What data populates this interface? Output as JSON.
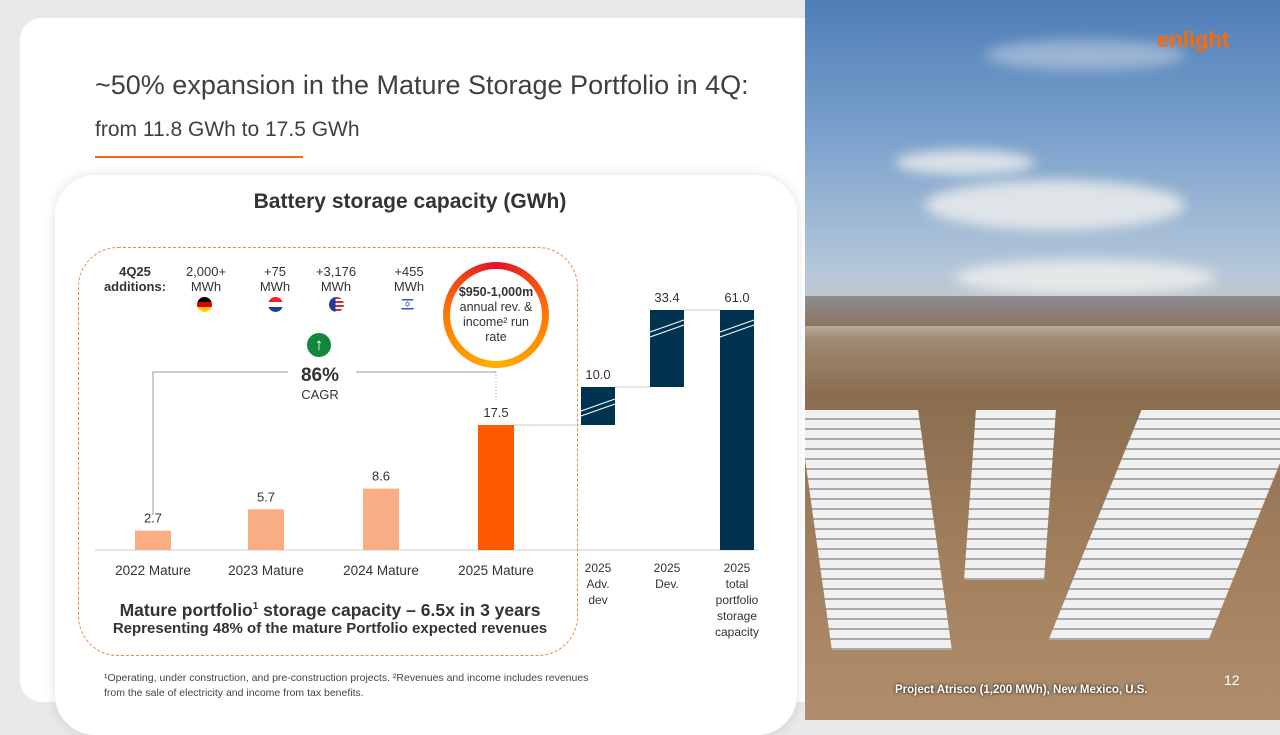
{
  "header": {
    "title": "~50% expansion in the Mature Storage Portfolio in 4Q:",
    "subtitle": "from 11.8 GWh to 17.5 GWh"
  },
  "additions": {
    "label_line1": "4Q25",
    "label_line2": "additions:",
    "items": [
      {
        "value": "2,000+",
        "unit": "MWh",
        "country": "germany"
      },
      {
        "value": "+75",
        "unit": "MWh",
        "country": "croatia"
      },
      {
        "value": "+3,176",
        "unit": "MWh",
        "country": "usa"
      },
      {
        "value": "+455",
        "unit": "MWh",
        "country": "israel"
      }
    ]
  },
  "cagr": {
    "value": "86%",
    "label": "CAGR"
  },
  "run_rate": {
    "value": "$950-1,000m",
    "line2": "annual rev. &",
    "line3": "income² run",
    "line4": "rate"
  },
  "chart_data": {
    "type": "bar",
    "subtype": "waterfall",
    "title": "Battery storage capacity (GWh)",
    "categories": [
      "2022 Mature",
      "2023 Mature",
      "2024 Mature",
      "2025 Mature",
      "2025 Adv. dev",
      "2025 Dev.",
      "2025 total portfolio storage capacity"
    ],
    "values": [
      2.7,
      5.7,
      8.6,
      17.5,
      10.0,
      33.4,
      61.0
    ],
    "labels": [
      "2.7",
      "5.7",
      "8.6",
      "17.5",
      "10.0",
      "33.4",
      "61.0"
    ],
    "colors": [
      "#f9ad84",
      "#f9ad84",
      "#f9ad84",
      "#ff5a00",
      "#003350",
      "#003350",
      "#003350"
    ],
    "ylim": [
      0,
      20
    ],
    "axis_break": true
  },
  "summary": {
    "line1a": "Mature portfolio",
    "line1sup": "1",
    "line1b": " storage capacity – 6.5x in 3 years",
    "line2": "Representing 48% of the mature Portfolio expected revenues"
  },
  "footnote": {
    "line1": "¹Operating, under construction, and pre-construction projects. ²Revenues and income includes revenues",
    "line2": "from the sale of electricity and income from tax benefits."
  },
  "photo": {
    "caption": "Project Atrisco (1,200 MWh), New Mexico, U.S.",
    "logo": "enlight"
  },
  "page_number": "12"
}
